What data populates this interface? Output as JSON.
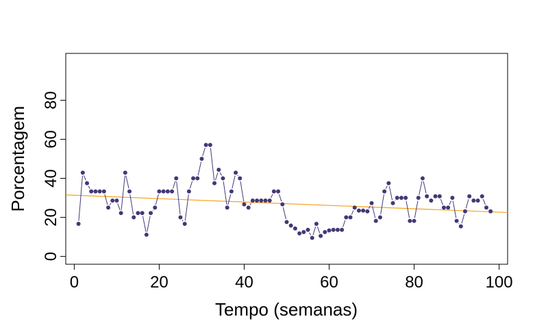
{
  "chart_data": {
    "type": "scatter",
    "title": "",
    "xlabel": "Tempo (semanas)",
    "ylabel": "Porcentagem",
    "xlim": [
      -2,
      102
    ],
    "ylim": [
      -4,
      104
    ],
    "xticks": [
      0,
      20,
      40,
      60,
      80,
      100
    ],
    "yticks": [
      0,
      20,
      40,
      60,
      80
    ],
    "grid": false,
    "legend": "none",
    "point_color": "#433877",
    "line_color": "#433877",
    "trend_color": "#f5a21b",
    "trend_line": {
      "x": [
        -2,
        102
      ],
      "y": [
        31.5,
        22.5
      ]
    },
    "series": [
      {
        "x": [
          1,
          2,
          3,
          4,
          5,
          6,
          7,
          8,
          9,
          10,
          11,
          12,
          13,
          14,
          15,
          16,
          17,
          18,
          19,
          20,
          21,
          22,
          23,
          24,
          25,
          26,
          27,
          28,
          29,
          30,
          31,
          32,
          33,
          34,
          35,
          36,
          37,
          38,
          39,
          40,
          41,
          42,
          43,
          44,
          45,
          46,
          47,
          48,
          49,
          50,
          51,
          52,
          53,
          54,
          55,
          56,
          57,
          58,
          59,
          60,
          61,
          62,
          63,
          64,
          65,
          66,
          67,
          68,
          69,
          70,
          71,
          72,
          73,
          74,
          75,
          76,
          77,
          78,
          79,
          80,
          81,
          82,
          83,
          84,
          85,
          86,
          87,
          88,
          89,
          90,
          91,
          92,
          93,
          94,
          95,
          96,
          97,
          98
        ],
        "y": [
          16.7,
          42.9,
          37.5,
          33.3,
          33.3,
          33.3,
          33.3,
          25,
          28.6,
          28.6,
          22.2,
          42.9,
          33.3,
          20,
          22.2,
          22.2,
          11.1,
          22.2,
          25,
          33.3,
          33.3,
          33.3,
          33.3,
          40,
          20,
          16.7,
          33.3,
          40,
          40,
          50,
          57.1,
          57.1,
          37.5,
          44.4,
          40,
          25,
          33.3,
          42.9,
          40,
          26.7,
          25,
          28.6,
          28.6,
          28.6,
          28.6,
          28.6,
          33.3,
          33.3,
          26.7,
          17.6,
          15.8,
          14.3,
          11.8,
          12.5,
          13.6,
          9.5,
          16.7,
          10.5,
          12.5,
          13.3,
          13.6,
          13.6,
          13.6,
          20,
          20,
          25,
          23.5,
          23.5,
          23.1,
          27.3,
          18.2,
          20,
          33.3,
          37.5,
          27.3,
          30,
          30,
          30,
          18.2,
          18.2,
          30,
          40,
          30.8,
          28.6,
          30.8,
          30.8,
          25,
          25,
          30,
          18.2,
          15.4,
          23.1,
          30.8,
          28.6,
          28.6,
          30.8,
          25,
          23.1
        ]
      }
    ]
  }
}
